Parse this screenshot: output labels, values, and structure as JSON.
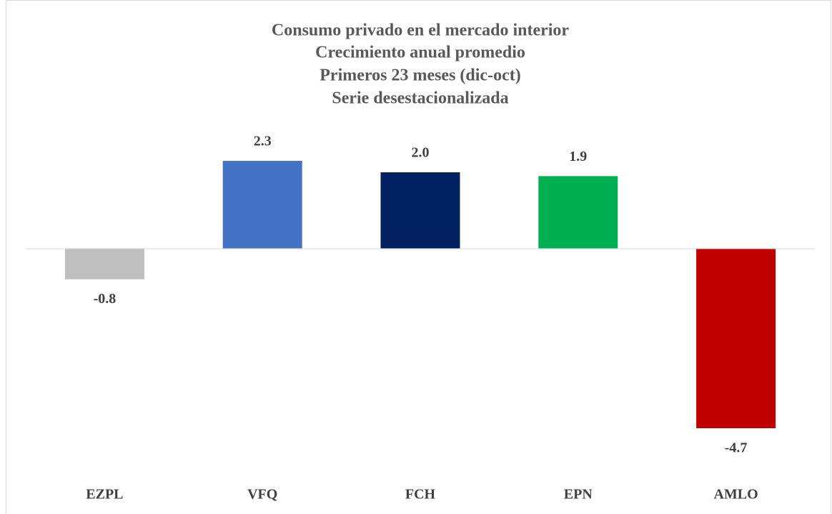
{
  "chart_data": {
    "type": "bar",
    "title": [
      "Consumo privado en el mercado interior",
      "Crecimiento anual promedio",
      "Primeros 23 meses (dic-oct)",
      "Serie desestacionalizada"
    ],
    "categories": [
      "EZPL",
      "VFQ",
      "FCH",
      "EPN",
      "AMLO"
    ],
    "values": [
      -0.8,
      2.3,
      2.0,
      1.9,
      -4.7
    ],
    "value_labels": [
      "-0.8",
      "2.3",
      "2.0",
      "1.9",
      "-4.7"
    ],
    "colors": [
      "#bfbfbf",
      "#4472c4",
      "#002060",
      "#00b050",
      "#c00000"
    ]
  }
}
